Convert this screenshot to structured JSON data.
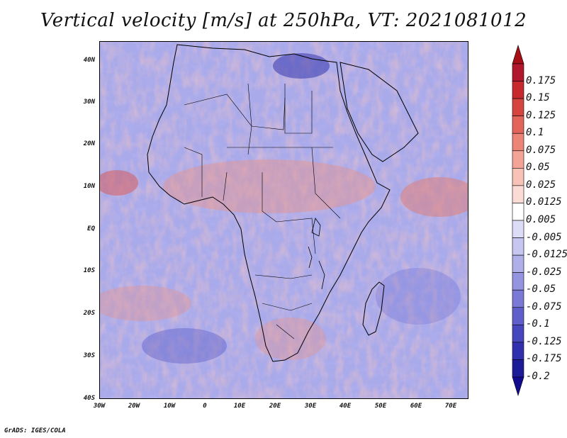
{
  "title": "Vertical velocity [m/s] at 250hPa, VT: 2021081012",
  "footer": "GrADS: IGES/COLA",
  "map": {
    "region": "Africa",
    "lon_range": [
      -30,
      75
    ],
    "lat_range": [
      -40,
      45
    ],
    "lat_ticks": [
      "40N",
      "30N",
      "20N",
      "10N",
      "EQ",
      "10S",
      "20S",
      "30S",
      "40S"
    ],
    "lon_ticks": [
      "30W",
      "20W",
      "10W",
      "0",
      "10E",
      "20E",
      "30E",
      "40E",
      "50E",
      "60E",
      "70E"
    ]
  },
  "colorbar": {
    "levels": [
      "0.175",
      "0.15",
      "0.125",
      "0.1",
      "0.075",
      "0.05",
      "0.025",
      "0.0125",
      "0.005",
      "-0.005",
      "-0.0125",
      "-0.025",
      "-0.05",
      "-0.075",
      "-0.1",
      "-0.125",
      "-0.175",
      "-0.2"
    ],
    "colors": [
      "#b2182b",
      "#c62a2f",
      "#d6443f",
      "#e2645a",
      "#ec8478",
      "#f3a497",
      "#f8c2b7",
      "#fbdcd4",
      "#ffffff",
      "#dcdcf6",
      "#c6c6f0",
      "#afafe9",
      "#9494e0",
      "#7a7ad6",
      "#5f5fcb",
      "#4646be",
      "#3030ae",
      "#1c1c99"
    ],
    "top_color": "#a50f15",
    "bottom_color": "#120a8f"
  }
}
